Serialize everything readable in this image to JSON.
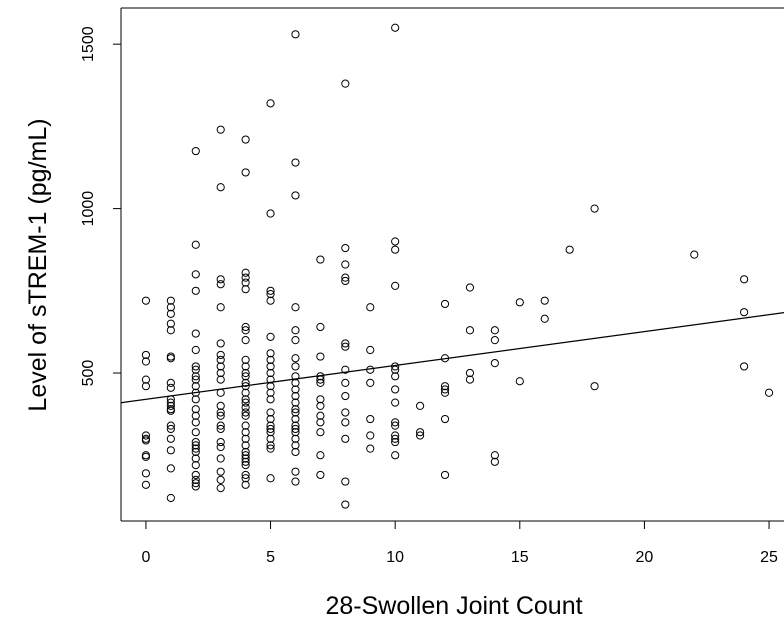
{
  "chart_data": {
    "type": "scatter",
    "title": "",
    "xlabel": "28-Swollen Joint Count",
    "ylabel": "Level of sTREM-1 (pg/mL)",
    "xlim": [
      -1,
      25.6
    ],
    "ylim": [
      50,
      1610
    ],
    "xticks": [
      0,
      5,
      10,
      15,
      20,
      25
    ],
    "yticks": [
      500,
      1000,
      1500
    ],
    "grid": false,
    "legend": "none",
    "marker": "open-circle",
    "trendline": {
      "intercept": 420,
      "slope": 10.3
    },
    "points": [
      [
        0,
        720
      ],
      [
        0,
        555
      ],
      [
        0,
        535
      ],
      [
        0,
        480
      ],
      [
        0,
        460
      ],
      [
        0,
        310
      ],
      [
        0,
        300
      ],
      [
        0,
        295
      ],
      [
        0,
        250
      ],
      [
        0,
        245
      ],
      [
        0,
        195
      ],
      [
        0,
        160
      ],
      [
        1,
        720
      ],
      [
        1,
        700
      ],
      [
        1,
        680
      ],
      [
        1,
        650
      ],
      [
        1,
        630
      ],
      [
        1,
        550
      ],
      [
        1,
        545
      ],
      [
        1,
        470
      ],
      [
        1,
        455
      ],
      [
        1,
        420
      ],
      [
        1,
        410
      ],
      [
        1,
        400
      ],
      [
        1,
        390
      ],
      [
        1,
        385
      ],
      [
        1,
        340
      ],
      [
        1,
        330
      ],
      [
        1,
        300
      ],
      [
        1,
        265
      ],
      [
        1,
        210
      ],
      [
        1,
        120
      ],
      [
        2,
        1175
      ],
      [
        2,
        890
      ],
      [
        2,
        800
      ],
      [
        2,
        750
      ],
      [
        2,
        620
      ],
      [
        2,
        570
      ],
      [
        2,
        520
      ],
      [
        2,
        510
      ],
      [
        2,
        490
      ],
      [
        2,
        480
      ],
      [
        2,
        460
      ],
      [
        2,
        440
      ],
      [
        2,
        420
      ],
      [
        2,
        390
      ],
      [
        2,
        370
      ],
      [
        2,
        350
      ],
      [
        2,
        320
      ],
      [
        2,
        290
      ],
      [
        2,
        280
      ],
      [
        2,
        270
      ],
      [
        2,
        260
      ],
      [
        2,
        240
      ],
      [
        2,
        220
      ],
      [
        2,
        190
      ],
      [
        2,
        175
      ],
      [
        2,
        165
      ],
      [
        2,
        155
      ],
      [
        3,
        1240
      ],
      [
        3,
        1065
      ],
      [
        3,
        785
      ],
      [
        3,
        770
      ],
      [
        3,
        700
      ],
      [
        3,
        590
      ],
      [
        3,
        555
      ],
      [
        3,
        540
      ],
      [
        3,
        520
      ],
      [
        3,
        500
      ],
      [
        3,
        480
      ],
      [
        3,
        440
      ],
      [
        3,
        400
      ],
      [
        3,
        380
      ],
      [
        3,
        370
      ],
      [
        3,
        340
      ],
      [
        3,
        330
      ],
      [
        3,
        290
      ],
      [
        3,
        275
      ],
      [
        3,
        240
      ],
      [
        3,
        200
      ],
      [
        3,
        175
      ],
      [
        3,
        150
      ],
      [
        4,
        1210
      ],
      [
        4,
        1110
      ],
      [
        4,
        805
      ],
      [
        4,
        790
      ],
      [
        4,
        775
      ],
      [
        4,
        755
      ],
      [
        4,
        640
      ],
      [
        4,
        630
      ],
      [
        4,
        600
      ],
      [
        4,
        540
      ],
      [
        4,
        520
      ],
      [
        4,
        500
      ],
      [
        4,
        490
      ],
      [
        4,
        470
      ],
      [
        4,
        460
      ],
      [
        4,
        440
      ],
      [
        4,
        420
      ],
      [
        4,
        410
      ],
      [
        4,
        395
      ],
      [
        4,
        380
      ],
      [
        4,
        370
      ],
      [
        4,
        340
      ],
      [
        4,
        320
      ],
      [
        4,
        300
      ],
      [
        4,
        280
      ],
      [
        4,
        260
      ],
      [
        4,
        250
      ],
      [
        4,
        240
      ],
      [
        4,
        230
      ],
      [
        4,
        220
      ],
      [
        4,
        190
      ],
      [
        4,
        180
      ],
      [
        4,
        160
      ],
      [
        5,
        1320
      ],
      [
        5,
        985
      ],
      [
        5,
        750
      ],
      [
        5,
        740
      ],
      [
        5,
        720
      ],
      [
        5,
        610
      ],
      [
        5,
        560
      ],
      [
        5,
        540
      ],
      [
        5,
        520
      ],
      [
        5,
        500
      ],
      [
        5,
        480
      ],
      [
        5,
        460
      ],
      [
        5,
        440
      ],
      [
        5,
        420
      ],
      [
        5,
        380
      ],
      [
        5,
        360
      ],
      [
        5,
        340
      ],
      [
        5,
        330
      ],
      [
        5,
        320
      ],
      [
        5,
        300
      ],
      [
        5,
        280
      ],
      [
        5,
        270
      ],
      [
        5,
        180
      ],
      [
        6,
        1530
      ],
      [
        6,
        1140
      ],
      [
        6,
        1040
      ],
      [
        6,
        700
      ],
      [
        6,
        630
      ],
      [
        6,
        600
      ],
      [
        6,
        545
      ],
      [
        6,
        520
      ],
      [
        6,
        490
      ],
      [
        6,
        470
      ],
      [
        6,
        450
      ],
      [
        6,
        430
      ],
      [
        6,
        410
      ],
      [
        6,
        390
      ],
      [
        6,
        380
      ],
      [
        6,
        360
      ],
      [
        6,
        340
      ],
      [
        6,
        330
      ],
      [
        6,
        320
      ],
      [
        6,
        300
      ],
      [
        6,
        280
      ],
      [
        6,
        260
      ],
      [
        6,
        200
      ],
      [
        6,
        170
      ],
      [
        7,
        845
      ],
      [
        7,
        640
      ],
      [
        7,
        550
      ],
      [
        7,
        490
      ],
      [
        7,
        480
      ],
      [
        7,
        470
      ],
      [
        7,
        420
      ],
      [
        7,
        400
      ],
      [
        7,
        370
      ],
      [
        7,
        350
      ],
      [
        7,
        320
      ],
      [
        7,
        250
      ],
      [
        7,
        190
      ],
      [
        8,
        1380
      ],
      [
        8,
        880
      ],
      [
        8,
        830
      ],
      [
        8,
        790
      ],
      [
        8,
        780
      ],
      [
        8,
        590
      ],
      [
        8,
        580
      ],
      [
        8,
        510
      ],
      [
        8,
        470
      ],
      [
        8,
        430
      ],
      [
        8,
        380
      ],
      [
        8,
        350
      ],
      [
        8,
        300
      ],
      [
        8,
        170
      ],
      [
        8,
        100
      ],
      [
        9,
        700
      ],
      [
        9,
        570
      ],
      [
        9,
        510
      ],
      [
        9,
        470
      ],
      [
        9,
        360
      ],
      [
        9,
        310
      ],
      [
        9,
        270
      ],
      [
        10,
        1550
      ],
      [
        10,
        900
      ],
      [
        10,
        875
      ],
      [
        10,
        765
      ],
      [
        10,
        520
      ],
      [
        10,
        510
      ],
      [
        10,
        490
      ],
      [
        10,
        450
      ],
      [
        10,
        410
      ],
      [
        10,
        350
      ],
      [
        10,
        340
      ],
      [
        10,
        310
      ],
      [
        10,
        300
      ],
      [
        10,
        290
      ],
      [
        10,
        250
      ],
      [
        11,
        400
      ],
      [
        11,
        320
      ],
      [
        11,
        310
      ],
      [
        12,
        710
      ],
      [
        12,
        545
      ],
      [
        12,
        460
      ],
      [
        12,
        450
      ],
      [
        12,
        440
      ],
      [
        12,
        360
      ],
      [
        12,
        190
      ],
      [
        13,
        760
      ],
      [
        13,
        630
      ],
      [
        13,
        500
      ],
      [
        13,
        480
      ],
      [
        14,
        630
      ],
      [
        14,
        600
      ],
      [
        14,
        530
      ],
      [
        14,
        250
      ],
      [
        14,
        230
      ],
      [
        15,
        715
      ],
      [
        15,
        475
      ],
      [
        16,
        720
      ],
      [
        16,
        665
      ],
      [
        17,
        875
      ],
      [
        18,
        1000
      ],
      [
        18,
        460
      ],
      [
        22,
        860
      ],
      [
        24,
        785
      ],
      [
        24,
        685
      ],
      [
        24,
        520
      ],
      [
        25,
        440
      ]
    ]
  }
}
